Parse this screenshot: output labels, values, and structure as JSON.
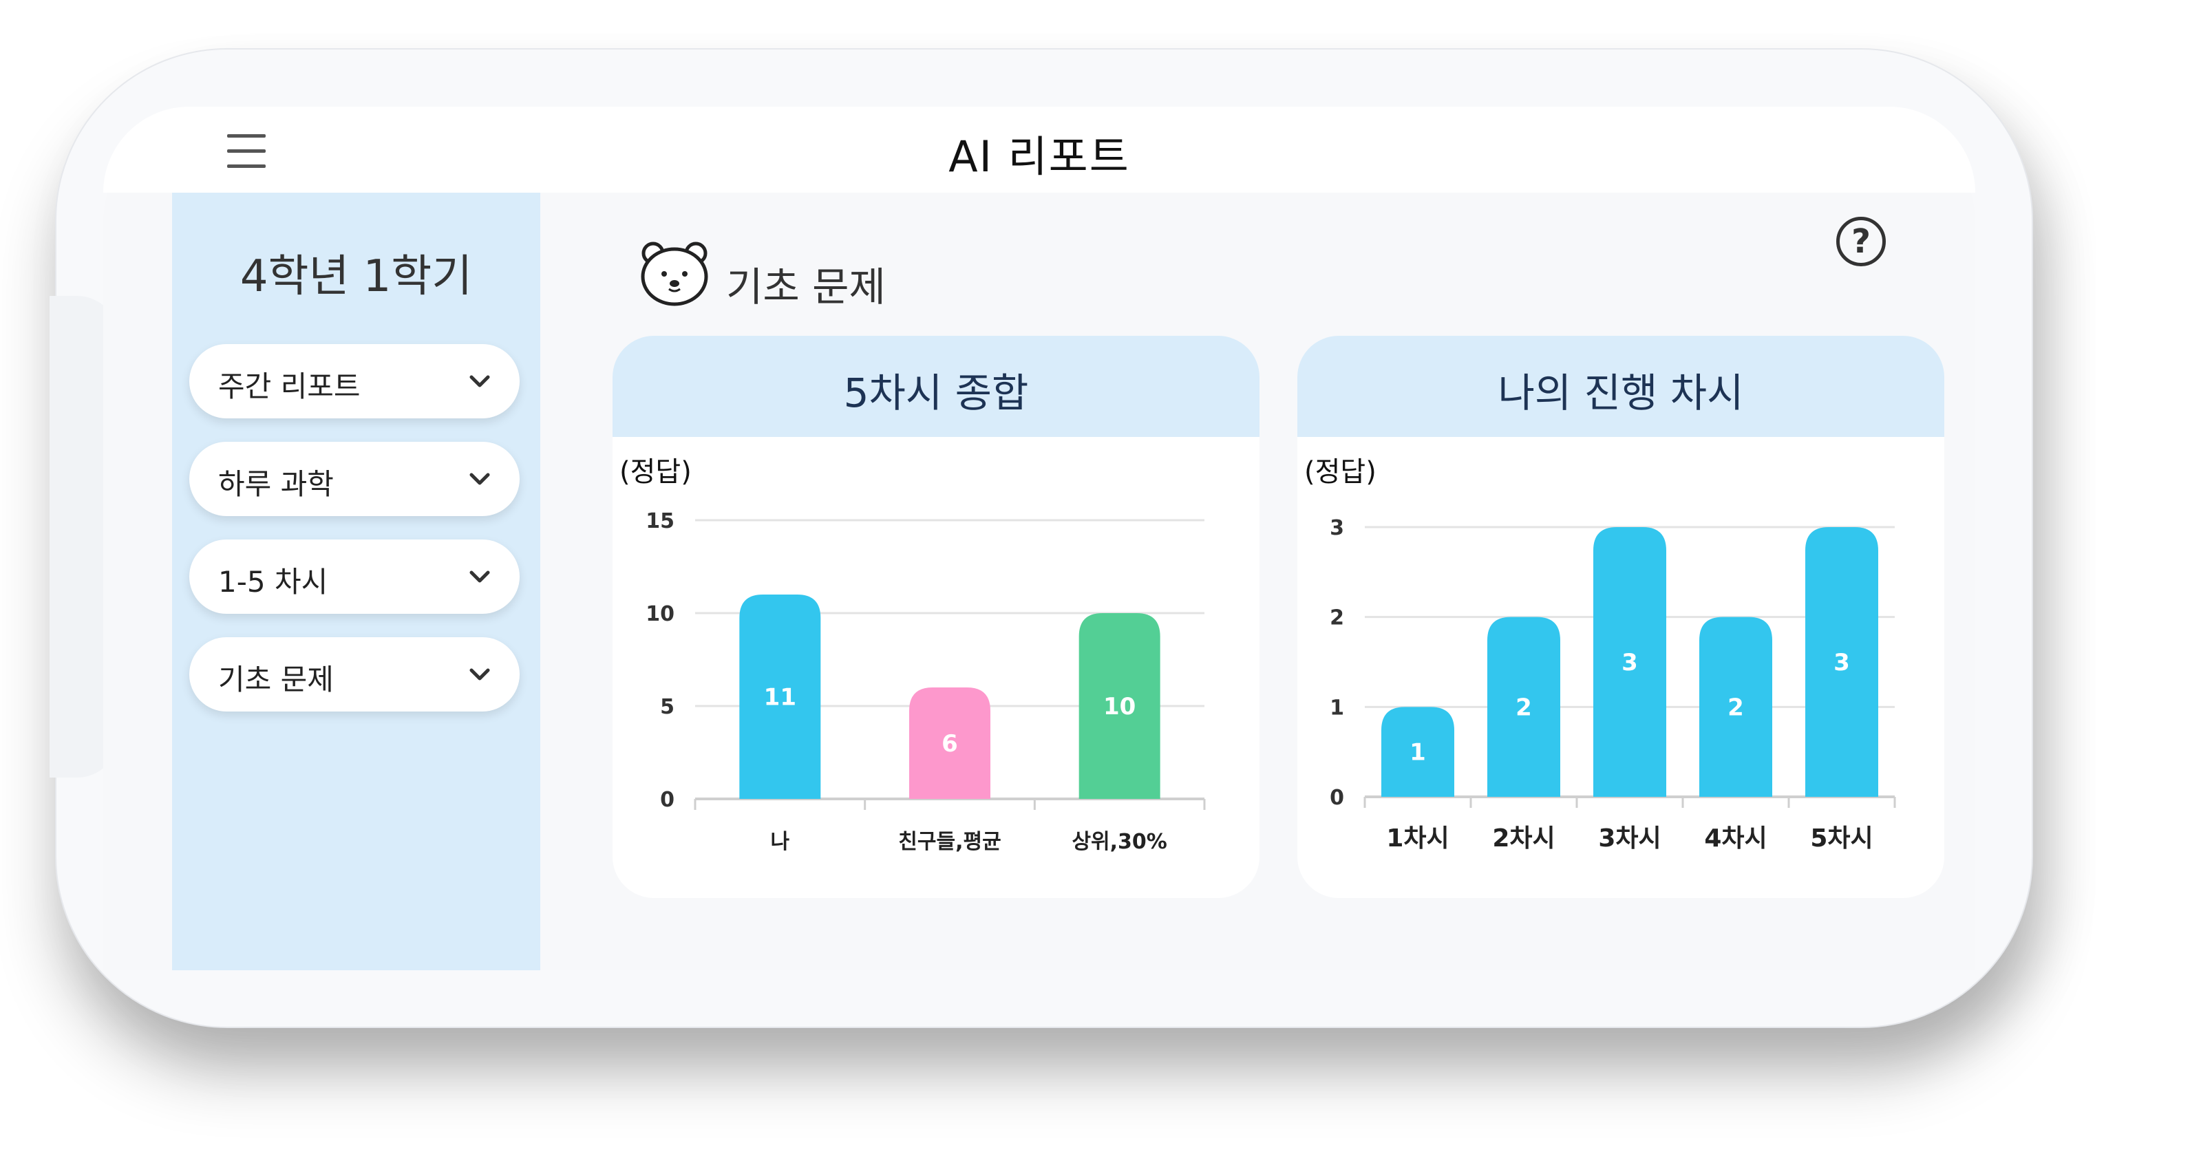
{
  "app": {
    "title": "AI 리포트"
  },
  "sidebar": {
    "semester": "4학년 1학기",
    "dropdowns": [
      {
        "label": "주간 리포트"
      },
      {
        "label": "하루 과학"
      },
      {
        "label": "1-5 차시"
      },
      {
        "label": "기초 문제"
      }
    ]
  },
  "main": {
    "section_title": "기초 문제",
    "help": "?"
  },
  "colors": {
    "sidebar_bg": "#d9ecfa",
    "blue": "#33c6ee",
    "pink": "#fd98cc",
    "green": "#53cf95"
  },
  "chart_data": [
    {
      "type": "bar",
      "title": "5차시 종합",
      "ylabel": "(정답)",
      "categories": [
        "나",
        "친구들,평균",
        "상위,30%"
      ],
      "values": [
        11,
        6,
        10
      ],
      "colors": [
        "#33c6ee",
        "#fd98cc",
        "#53cf95"
      ],
      "ylim": [
        0,
        15
      ],
      "yticks": [
        0,
        5,
        10,
        15
      ],
      "grid": true
    },
    {
      "type": "bar",
      "title": "나의 진행 차시",
      "ylabel": "(정답)",
      "categories": [
        "1차시",
        "2차시",
        "3차시",
        "4차시",
        "5차시"
      ],
      "values": [
        1,
        2,
        3,
        2,
        3
      ],
      "colors": [
        "#33c6ee",
        "#33c6ee",
        "#33c6ee",
        "#33c6ee",
        "#33c6ee"
      ],
      "ylim": [
        0,
        3
      ],
      "yticks": [
        0,
        1,
        2,
        3
      ],
      "grid": true
    }
  ]
}
